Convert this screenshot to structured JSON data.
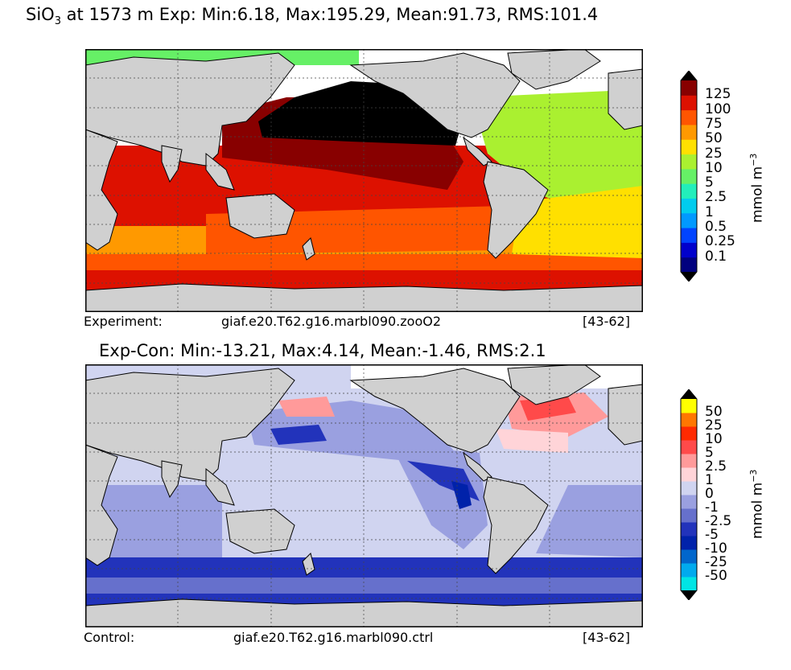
{
  "top_panel": {
    "title_prefix": "SiO",
    "title_sub": "3",
    "title_rest": " at 1573 m Exp: Min:6.18, Max:195.29, Mean:91.73, RMS:101.4",
    "footer_left": "Experiment:",
    "footer_case": "giaf.e20.T62.g16.marbl090.zooO2",
    "footer_years": "[43-62]",
    "colorbar": {
      "unit_base": "mmol m",
      "unit_exp": "−3",
      "levels": [
        "0.1",
        "0.25",
        "0.5",
        "1",
        "2.5",
        "5",
        "10",
        "25",
        "50",
        "75",
        "100",
        "125"
      ],
      "colors": [
        "#00007f",
        "#0000cc",
        "#0044ff",
        "#0099ff",
        "#00ccee",
        "#22eebb",
        "#66f066",
        "#aaf030",
        "#ffe000",
        "#ff9900",
        "#ff5500",
        "#dd1100",
        "#880000"
      ],
      "over_color": "#000000",
      "under_color": "#000000"
    }
  },
  "bottom_panel": {
    "title": "Exp-Con: Min:-13.21, Max:4.14, Mean:-1.46, RMS:2.1",
    "footer_left": "Control:",
    "footer_case": "giaf.e20.T62.g16.marbl090.ctrl",
    "footer_years": "[43-62]",
    "colorbar": {
      "unit_base": "mmol m",
      "unit_exp": "−3",
      "levels": [
        "-50",
        "-25",
        "-10",
        "-5",
        "-2.5",
        "-1",
        "0",
        "1",
        "2.5",
        "5",
        "10",
        "25",
        "50"
      ],
      "colors": [
        "#00e5e5",
        "#00aaee",
        "#0066cc",
        "#0022aa",
        "#2233bb",
        "#6670cc",
        "#9aa0e0",
        "#d0d4f0",
        "#ffd4d8",
        "#ff9a9a",
        "#ff4a4a",
        "#ff2a00",
        "#ff7700",
        "#ffff00"
      ],
      "over_color": "#000000",
      "under_color": "#000000"
    }
  }
}
